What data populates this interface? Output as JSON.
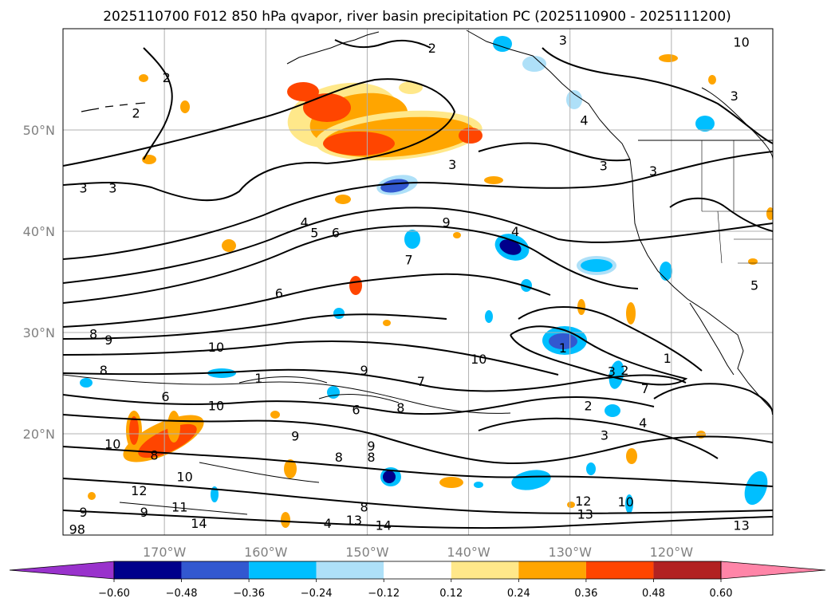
{
  "chart_data": {
    "type": "contour_map",
    "title": "2025110700 F012 850 hPa qvapor, river basin precipitation PC (2025110900 - 2025111200)",
    "lon_range": [
      -180,
      -110
    ],
    "lat_range": [
      10,
      60
    ],
    "lat_ticks": [
      {
        "value": 20,
        "label": "20°N"
      },
      {
        "value": 30,
        "label": "30°N"
      },
      {
        "value": 40,
        "label": "40°N"
      },
      {
        "value": 50,
        "label": "50°N"
      }
    ],
    "lon_ticks": [
      {
        "value": -170,
        "label": "170°W"
      },
      {
        "value": -160,
        "label": "160°W"
      },
      {
        "value": -150,
        "label": "150°W"
      },
      {
        "value": -140,
        "label": "140°W"
      },
      {
        "value": -130,
        "label": "130°W"
      },
      {
        "value": -120,
        "label": "120°W"
      }
    ],
    "grid": true,
    "colorbar": {
      "orientation": "horizontal",
      "extend": "both",
      "ticks": [
        "−0.60",
        "−0.48",
        "−0.36",
        "−0.24",
        "−0.12",
        "0.12",
        "0.24",
        "0.36",
        "0.48",
        "0.60"
      ],
      "colors": [
        "#9932cc",
        "#00008b",
        "#3258d0",
        "#00bfff",
        "#aee0f8",
        "#ffffff",
        "#ffe88a",
        "#ffa500",
        "#ff4500",
        "#b22222",
        "#ff85a8"
      ]
    },
    "contour_labels": [
      {
        "text": "3",
        "lon": -130.7,
        "lat": 58.9
      },
      {
        "text": "2",
        "lon": -143.6,
        "lat": 58.1
      },
      {
        "text": "2",
        "lon": -169.8,
        "lat": 55.2
      },
      {
        "text": "2",
        "lon": -172.8,
        "lat": 51.7
      },
      {
        "text": "3",
        "lon": -113.8,
        "lat": 53.4
      },
      {
        "text": "4",
        "lon": -128.6,
        "lat": 51.0
      },
      {
        "text": "3",
        "lon": -141.6,
        "lat": 46.6
      },
      {
        "text": "3",
        "lon": -126.7,
        "lat": 46.5
      },
      {
        "text": "3",
        "lon": -121.8,
        "lat": 46.0
      },
      {
        "text": "3",
        "lon": -178.0,
        "lat": 44.3
      },
      {
        "text": "3",
        "lon": -175.1,
        "lat": 44.3
      },
      {
        "text": "4",
        "lon": -156.2,
        "lat": 40.9
      },
      {
        "text": "5",
        "lon": -155.2,
        "lat": 39.9
      },
      {
        "text": "6",
        "lon": -153.1,
        "lat": 39.9
      },
      {
        "text": "9",
        "lon": -142.2,
        "lat": 40.9
      },
      {
        "text": "4",
        "lon": -135.4,
        "lat": 40.0
      },
      {
        "text": "7",
        "lon": -145.9,
        "lat": 37.2
      },
      {
        "text": "6",
        "lon": -158.7,
        "lat": 33.9
      },
      {
        "text": "8",
        "lon": -177.0,
        "lat": 29.9
      },
      {
        "text": "9",
        "lon": -175.5,
        "lat": 29.3
      },
      {
        "text": "10",
        "lon": -164.9,
        "lat": 28.6
      },
      {
        "text": "1",
        "lon": -130.7,
        "lat": 28.5
      },
      {
        "text": "10",
        "lon": -139.0,
        "lat": 27.4
      },
      {
        "text": "1",
        "lon": -120.4,
        "lat": 27.5
      },
      {
        "text": "8",
        "lon": -176.0,
        "lat": 26.3
      },
      {
        "text": "9",
        "lon": -150.3,
        "lat": 26.3
      },
      {
        "text": "1",
        "lon": -160.7,
        "lat": 25.5
      },
      {
        "text": "7",
        "lon": -144.7,
        "lat": 25.2
      },
      {
        "text": "2",
        "lon": -124.6,
        "lat": 26.3
      },
      {
        "text": "3",
        "lon": -125.9,
        "lat": 26.2
      },
      {
        "text": "7",
        "lon": -122.6,
        "lat": 24.5
      },
      {
        "text": "6",
        "lon": -169.9,
        "lat": 23.7
      },
      {
        "text": "2",
        "lon": -128.2,
        "lat": 22.8
      },
      {
        "text": "10",
        "lon": -164.9,
        "lat": 22.8
      },
      {
        "text": "6",
        "lon": -151.1,
        "lat": 22.4
      },
      {
        "text": "8",
        "lon": -146.7,
        "lat": 22.6
      },
      {
        "text": "4",
        "lon": -122.8,
        "lat": 21.1
      },
      {
        "text": "3",
        "lon": -126.6,
        "lat": 19.9
      },
      {
        "text": "10",
        "lon": -175.1,
        "lat": 19.0
      },
      {
        "text": "8",
        "lon": -171.0,
        "lat": 17.9
      },
      {
        "text": "9",
        "lon": -157.1,
        "lat": 19.8
      },
      {
        "text": "9",
        "lon": -149.6,
        "lat": 18.8
      },
      {
        "text": "8",
        "lon": -149.6,
        "lat": 17.7
      },
      {
        "text": "8",
        "lon": -152.8,
        "lat": 17.7
      },
      {
        "text": "10",
        "lon": -168.0,
        "lat": 15.8
      },
      {
        "text": "12",
        "lon": -172.5,
        "lat": 14.4
      },
      {
        "text": "11",
        "lon": -168.5,
        "lat": 12.8
      },
      {
        "text": "9",
        "lon": -178.0,
        "lat": 12.3
      },
      {
        "text": "9",
        "lon": -172.0,
        "lat": 12.3
      },
      {
        "text": "12",
        "lon": -128.7,
        "lat": 13.4
      },
      {
        "text": "10",
        "lon": -124.5,
        "lat": 13.3
      },
      {
        "text": "13",
        "lon": -128.5,
        "lat": 12.1
      },
      {
        "text": "8",
        "lon": -150.3,
        "lat": 12.8
      },
      {
        "text": "14",
        "lon": -166.6,
        "lat": 11.2
      },
      {
        "text": "4",
        "lon": -153.9,
        "lat": 11.2
      },
      {
        "text": "13",
        "lon": -151.3,
        "lat": 11.5
      },
      {
        "text": "14",
        "lon": -148.4,
        "lat": 11.0
      },
      {
        "text": "13",
        "lon": -113.1,
        "lat": 11.0
      },
      {
        "text": "98",
        "lon": -178.6,
        "lat": 10.6
      },
      {
        "text": "10",
        "lon": -113.1,
        "lat": 58.7
      },
      {
        "text": "5",
        "lon": -111.8,
        "lat": 34.7
      }
    ]
  }
}
